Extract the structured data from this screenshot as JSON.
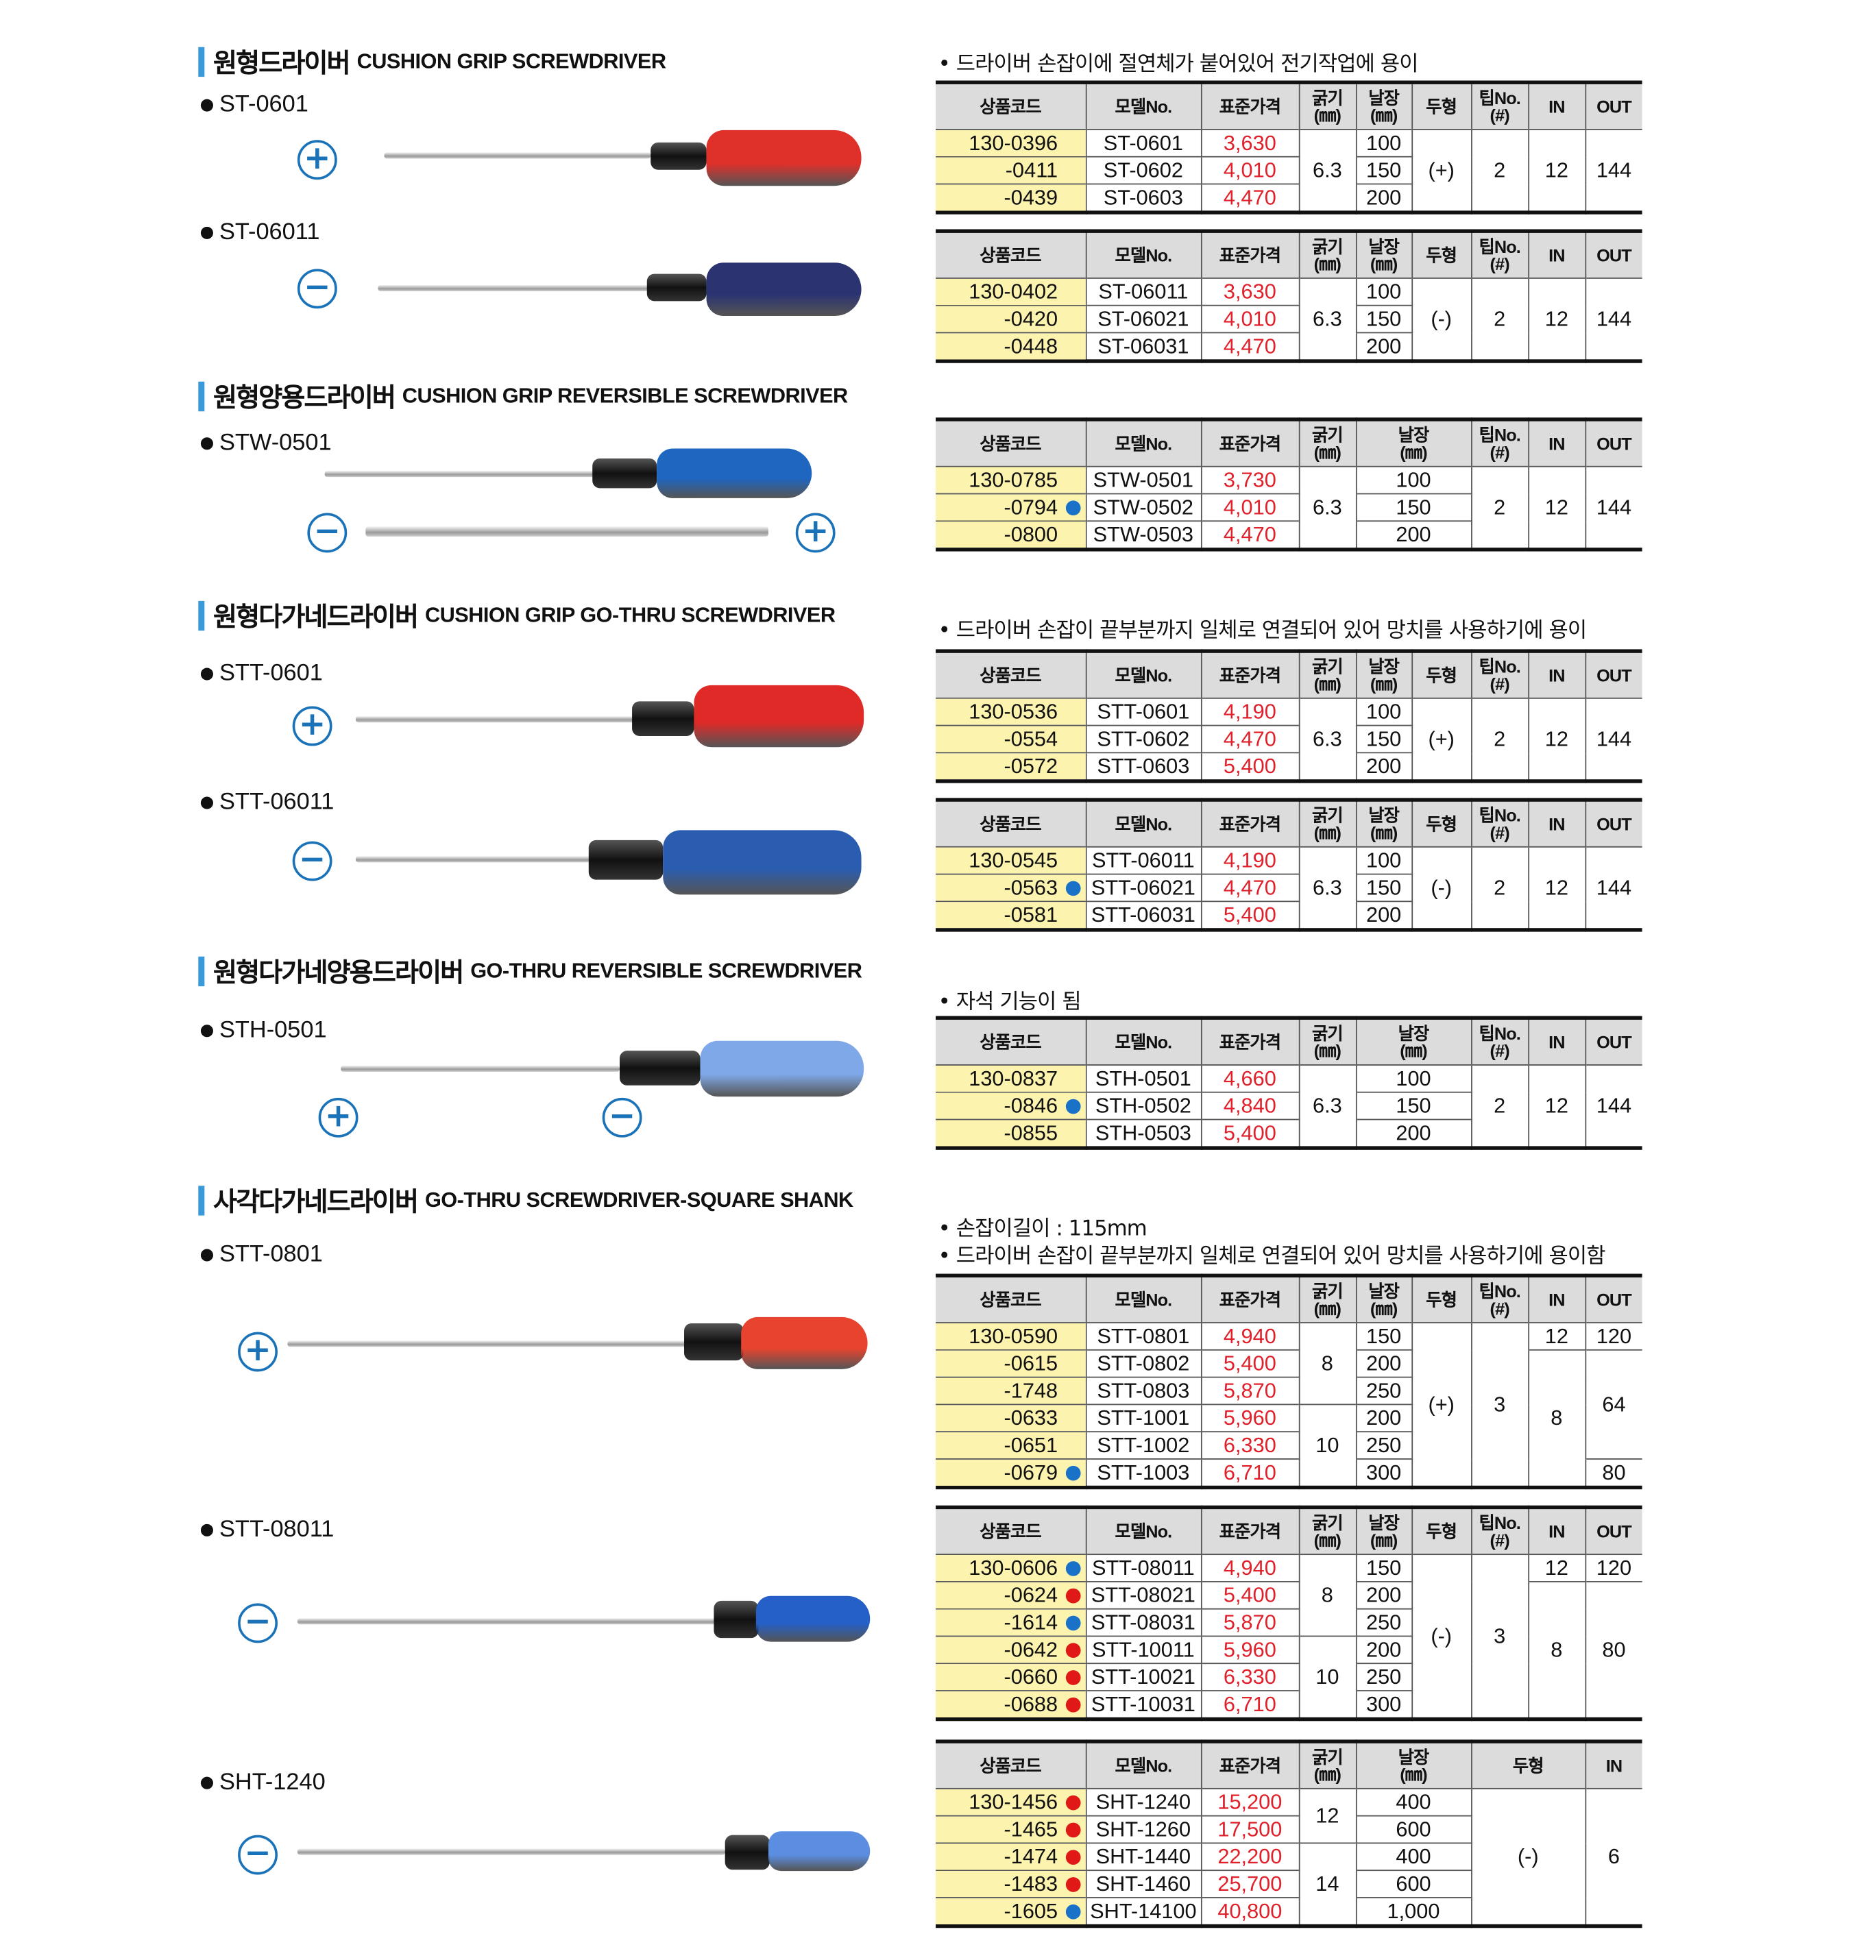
{
  "colors": {
    "accent": "#3a9ad9",
    "price": "#e0202a",
    "code_bg": "#fcf3ae",
    "header_bg": "#dcdcdc",
    "marker_blue": "#1a72c8",
    "marker_red": "#e01818"
  },
  "sections": [
    {
      "ko": "원형드라이버",
      "en": "CUSHION GRIP SCREWDRIVER"
    },
    {
      "ko": "원형양용드라이버",
      "en": "CUSHION GRIP REVERSIBLE SCREWDRIVER"
    },
    {
      "ko": "원형다가네드라이버",
      "en": "CUSHION GRIP GO-THRU SCREWDRIVER"
    },
    {
      "ko": "원형다가네양용드라이버",
      "en": "GO-THRU REVERSIBLE SCREWDRIVER"
    },
    {
      "ko": "사각다가네드라이버",
      "en": "GO-THRU SCREWDRIVER-SQUARE SHANK"
    }
  ],
  "products": [
    "ST-0601",
    "ST-06011",
    "STW-0501",
    "STT-0601",
    "STT-06011",
    "STH-0501",
    "STT-0801",
    "STT-08011",
    "SHT-1240"
  ],
  "notes": [
    "• 드라이버 손잡이에 절연체가 붙어있어 전기작업에 용이",
    "• 드라이버 손잡이 끝부분까지 일체로 연결되어 있어 망치를 사용하기에  용이",
    "• 자석 기능이 됨",
    "• 손잡이길이 : 115mm",
    "• 드라이버 손잡이 끝부분까지 일체로 연결되어 있어 망치를 사용하기에  용이함"
  ],
  "tip_icons": [
    "plus",
    "minus",
    "minus-plus",
    "plus",
    "minus",
    "plus-minus",
    "plus",
    "minus",
    "minus"
  ],
  "headers": {
    "std": [
      "상품코드",
      "모델No.",
      "표준가격",
      "굵기\n(㎜)",
      "날장\n(㎜)",
      "두형",
      "팁No.\n(#)",
      "IN",
      "OUT"
    ],
    "rev": [
      "상품코드",
      "모델No.",
      "표준가격",
      "굵기\n(㎜)",
      "날장\n(㎜)",
      "팁No.\n(#)",
      "IN",
      "OUT"
    ],
    "sht": [
      "상품코드",
      "모델No.",
      "표준가격",
      "굵기\n(㎜)",
      "날장\n(㎜)",
      "두형",
      "IN"
    ]
  },
  "tables": [
    {
      "header": "std",
      "rows": [
        [
          {
            "code": "130-0396"
          },
          "ST-0601",
          "3,630",
          "6.3",
          "100",
          "(+)",
          "2",
          "12",
          "144"
        ],
        [
          {
            "code": "-0411"
          },
          "ST-0602",
          "4,010",
          null,
          "150",
          null,
          null,
          null,
          null
        ],
        [
          {
            "code": "-0439"
          },
          "ST-0603",
          "4,470",
          null,
          "200",
          null,
          null,
          null,
          null
        ]
      ]
    },
    {
      "header": "std",
      "rows": [
        [
          {
            "code": "130-0402"
          },
          "ST-06011",
          "3,630",
          "6.3",
          "100",
          "(-)",
          "2",
          "12",
          "144"
        ],
        [
          {
            "code": "-0420"
          },
          "ST-06021",
          "4,010",
          null,
          "150",
          null,
          null,
          null,
          null
        ],
        [
          {
            "code": "-0448"
          },
          "ST-06031",
          "4,470",
          null,
          "200",
          null,
          null,
          null,
          null
        ]
      ]
    },
    {
      "header": "rev",
      "rows": [
        [
          {
            "code": "130-0785"
          },
          "STW-0501",
          "3,730",
          "6.3",
          "100",
          "2",
          "12",
          "144"
        ],
        [
          {
            "code": "-0794",
            "marker": "blue"
          },
          "STW-0502",
          "4,010",
          null,
          "150",
          null,
          null,
          null
        ],
        [
          {
            "code": "-0800"
          },
          "STW-0503",
          "4,470",
          null,
          "200",
          null,
          null,
          null
        ]
      ]
    },
    {
      "header": "std",
      "rows": [
        [
          {
            "code": "130-0536"
          },
          "STT-0601",
          "4,190",
          "6.3",
          "100",
          "(+)",
          "2",
          "12",
          "144"
        ],
        [
          {
            "code": "-0554"
          },
          "STT-0602",
          "4,470",
          null,
          "150",
          null,
          null,
          null,
          null
        ],
        [
          {
            "code": "-0572"
          },
          "STT-0603",
          "5,400",
          null,
          "200",
          null,
          null,
          null,
          null
        ]
      ]
    },
    {
      "header": "std",
      "rows": [
        [
          {
            "code": "130-0545"
          },
          "STT-06011",
          "4,190",
          "6.3",
          "100",
          "(-)",
          "2",
          "12",
          "144"
        ],
        [
          {
            "code": "-0563",
            "marker": "blue"
          },
          "STT-06021",
          "4,470",
          null,
          "150",
          null,
          null,
          null,
          null
        ],
        [
          {
            "code": "-0581"
          },
          "STT-06031",
          "5,400",
          null,
          "200",
          null,
          null,
          null,
          null
        ]
      ]
    },
    {
      "header": "rev",
      "rows": [
        [
          {
            "code": "130-0837"
          },
          "STH-0501",
          "4,660",
          "6.3",
          "100",
          "2",
          "12",
          "144"
        ],
        [
          {
            "code": "-0846",
            "marker": "blue"
          },
          "STH-0502",
          "4,840",
          null,
          "150",
          null,
          null,
          null
        ],
        [
          {
            "code": "-0855"
          },
          "STH-0503",
          "5,400",
          null,
          "200",
          null,
          null,
          null
        ]
      ]
    },
    {
      "header": "std",
      "rows": [
        [
          {
            "code": "130-0590"
          },
          "STT-0801",
          "4,940",
          "8",
          "150",
          "(+)",
          "3",
          "12",
          "120"
        ],
        [
          {
            "code": "-0615"
          },
          "STT-0802",
          "5,400",
          null,
          "200",
          null,
          null,
          "8",
          "64"
        ],
        [
          {
            "code": "-1748"
          },
          "STT-0803",
          "5,870",
          null,
          "250",
          null,
          null,
          null,
          null
        ],
        [
          {
            "code": "-0633"
          },
          "STT-1001",
          "5,960",
          "10",
          "200",
          null,
          null,
          null,
          null
        ],
        [
          {
            "code": "-0651"
          },
          "STT-1002",
          "6,330",
          null,
          "250",
          null,
          null,
          null,
          null
        ],
        [
          {
            "code": "-0679",
            "marker": "blue"
          },
          "STT-1003",
          "6,710",
          null,
          "300",
          null,
          null,
          null,
          "80"
        ]
      ]
    },
    {
      "header": "std",
      "rows": [
        [
          {
            "code": "130-0606",
            "marker": "blue"
          },
          "STT-08011",
          "4,940",
          "8",
          "150",
          "(-)",
          "3",
          "12",
          "120"
        ],
        [
          {
            "code": "-0624",
            "marker": "red"
          },
          "STT-08021",
          "5,400",
          null,
          "200",
          null,
          null,
          "8",
          "80"
        ],
        [
          {
            "code": "-1614",
            "marker": "blue"
          },
          "STT-08031",
          "5,870",
          null,
          "250",
          null,
          null,
          null,
          null
        ],
        [
          {
            "code": "-0642",
            "marker": "red"
          },
          "STT-10011",
          "5,960",
          "10",
          "200",
          null,
          null,
          null,
          null
        ],
        [
          {
            "code": "-0660",
            "marker": "red"
          },
          "STT-10021",
          "6,330",
          null,
          "250",
          null,
          null,
          null,
          null
        ],
        [
          {
            "code": "-0688",
            "marker": "red"
          },
          "STT-10031",
          "6,710",
          null,
          "300",
          null,
          null,
          null,
          null
        ]
      ]
    },
    {
      "header": "sht",
      "rows": [
        [
          {
            "code": "130-1456",
            "marker": "red"
          },
          "SHT-1240",
          "15,200",
          "12",
          "400",
          "(-)",
          "6"
        ],
        [
          {
            "code": "-1465",
            "marker": "red"
          },
          "SHT-1260",
          "17,500",
          null,
          "600",
          null,
          null
        ],
        [
          {
            "code": "-1474",
            "marker": "red"
          },
          "SHT-1440",
          "22,200",
          "14",
          "400",
          null,
          null
        ],
        [
          {
            "code": "-1483",
            "marker": "red"
          },
          "SHT-1460",
          "25,700",
          null,
          "600",
          null,
          null
        ],
        [
          {
            "code": "-1605",
            "marker": "blue"
          },
          "SHT-14100",
          "40,800",
          null,
          "1,000",
          null,
          null
        ]
      ]
    }
  ]
}
